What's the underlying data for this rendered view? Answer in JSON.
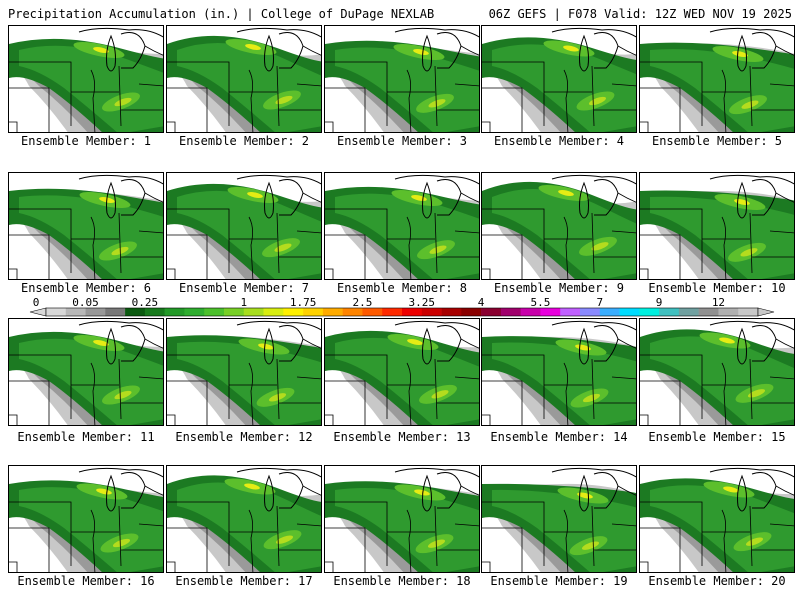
{
  "header": {
    "title": "Precipitation Accumulation (in.) | College of DuPage NEXLAB",
    "run_info": "06Z GEFS | F078 Valid: 12Z WED NOV 19 2025"
  },
  "colorbar": {
    "labels": [
      "0",
      "0.05",
      "0.25",
      "1",
      "1.75",
      "2.5",
      "3.25",
      "4",
      "5.5",
      "7",
      "9",
      "12"
    ],
    "label_bins": [
      0,
      2,
      5,
      10,
      13,
      16,
      19,
      22,
      25,
      28,
      31,
      34
    ],
    "colors": [
      "#d8d8d8",
      "#b8b8b8",
      "#989898",
      "#787878",
      "#0b5a10",
      "#177a1c",
      "#239a28",
      "#2fae2f",
      "#4cc12c",
      "#78d026",
      "#a8df1e",
      "#d8ee10",
      "#fff000",
      "#ffd200",
      "#ffab00",
      "#ff8400",
      "#ff5a00",
      "#ff2a00",
      "#ee0000",
      "#cc0000",
      "#a80000",
      "#8a0000",
      "#8a0030",
      "#a0006c",
      "#c800aa",
      "#e800dd",
      "#c060ff",
      "#8a8aff",
      "#3aaeff",
      "#00dcff",
      "#00f0e0",
      "#40c0c0",
      "#70a0a0",
      "#909090",
      "#b0b0b0",
      "#c8c8c8"
    ]
  },
  "palette": {
    "light_gray": "#c8c8c8",
    "mid_gray": "#9a9a9a",
    "dark_green": "#1c7a22",
    "green": "#2f9a2f",
    "light_green": "#5cbf2c",
    "yellow_green": "#b4dc1e",
    "yellow": "#e6ec14"
  },
  "panels": [
    {
      "label": "Ensemble Member: 1"
    },
    {
      "label": "Ensemble Member: 2"
    },
    {
      "label": "Ensemble Member: 3"
    },
    {
      "label": "Ensemble Member: 4"
    },
    {
      "label": "Ensemble Member: 5"
    },
    {
      "label": "Ensemble Member: 6"
    },
    {
      "label": "Ensemble Member: 7"
    },
    {
      "label": "Ensemble Member: 8"
    },
    {
      "label": "Ensemble Member: 9"
    },
    {
      "label": "Ensemble Member: 10"
    },
    {
      "label": "Ensemble Member: 11"
    },
    {
      "label": "Ensemble Member: 12"
    },
    {
      "label": "Ensemble Member: 13"
    },
    {
      "label": "Ensemble Member: 14"
    },
    {
      "label": "Ensemble Member: 15"
    },
    {
      "label": "Ensemble Member: 16"
    },
    {
      "label": "Ensemble Member: 17"
    },
    {
      "label": "Ensemble Member: 18"
    },
    {
      "label": "Ensemble Member: 19"
    },
    {
      "label": "Ensemble Member: 20"
    }
  ]
}
